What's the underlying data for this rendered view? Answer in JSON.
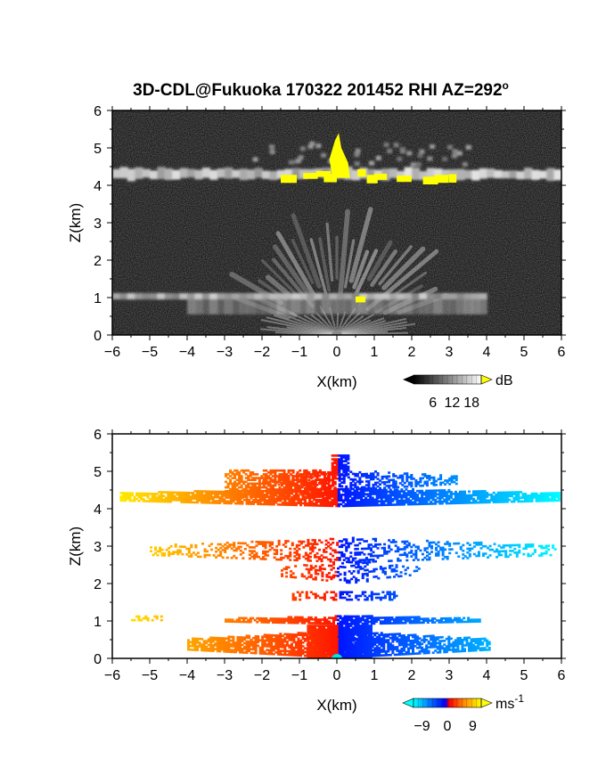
{
  "title": {
    "main": "3D-CDL@Fukuoka 170322 201452 RHI AZ=292",
    "degree": "o"
  },
  "chart_data": [
    {
      "type": "heatmap",
      "variable": "reflectivity",
      "xlabel": "X(km)",
      "ylabel": "Z(km)",
      "xlim": [
        -6,
        6
      ],
      "ylim": [
        0,
        6
      ],
      "xticks": [
        -6,
        -5,
        -4,
        -3,
        -2,
        -1,
        0,
        1,
        2,
        3,
        4,
        5,
        6
      ],
      "yticks": [
        0,
        1,
        2,
        3,
        4,
        5,
        6
      ],
      "colorbar": {
        "unit": "dB",
        "ticks": [
          6,
          12,
          18
        ],
        "range": [
          0,
          21
        ]
      },
      "features": [
        {
          "desc": "bright layer",
          "z": [
            4.1,
            4.5
          ],
          "x": [
            -6,
            6
          ]
        },
        {
          "desc": "cloud top core",
          "x": [
            -0.2,
            0.3
          ],
          "z": [
            4.2,
            5.4
          ],
          "color": "#ffff00"
        },
        {
          "desc": "fan streaks",
          "z": [
            1.0,
            3.0
          ]
        },
        {
          "desc": "low layer",
          "z": [
            0.9,
            1.15
          ],
          "x": [
            -6,
            4
          ]
        }
      ]
    },
    {
      "type": "heatmap",
      "variable": "doppler velocity",
      "xlabel": "X(km)",
      "ylabel": "Z(km)",
      "xlim": [
        -6,
        6
      ],
      "ylim": [
        0,
        6
      ],
      "xticks": [
        -6,
        -5,
        -4,
        -3,
        -2,
        -1,
        0,
        1,
        2,
        3,
        4,
        5,
        6
      ],
      "yticks": [
        0,
        1,
        2,
        3,
        4,
        5,
        6
      ],
      "colorbar": {
        "unit": "ms",
        "unit_exp": "-1",
        "ticks": [
          -9,
          0,
          9
        ],
        "range": [
          -12,
          12
        ]
      },
      "features": [
        {
          "desc": "upper layer",
          "x": [
            -5.8,
            5.9
          ],
          "z": [
            4.0,
            5.4
          ]
        },
        {
          "desc": "mid layer",
          "x": [
            -5.0,
            5.8
          ],
          "z": [
            2.2,
            3.2
          ]
        },
        {
          "desc": "1 km layer",
          "x": [
            -5.5,
            3.8
          ],
          "z": [
            0.9,
            1.15
          ]
        },
        {
          "desc": "surface layer",
          "x": [
            -4.0,
            4.1
          ],
          "z": [
            0.0,
            0.7
          ]
        }
      ]
    }
  ],
  "colors": {
    "background": "#ffffff",
    "radar_dark": "#181818",
    "core": "#ffff00",
    "toward": "#0026ff",
    "away": "#ff3a00"
  }
}
